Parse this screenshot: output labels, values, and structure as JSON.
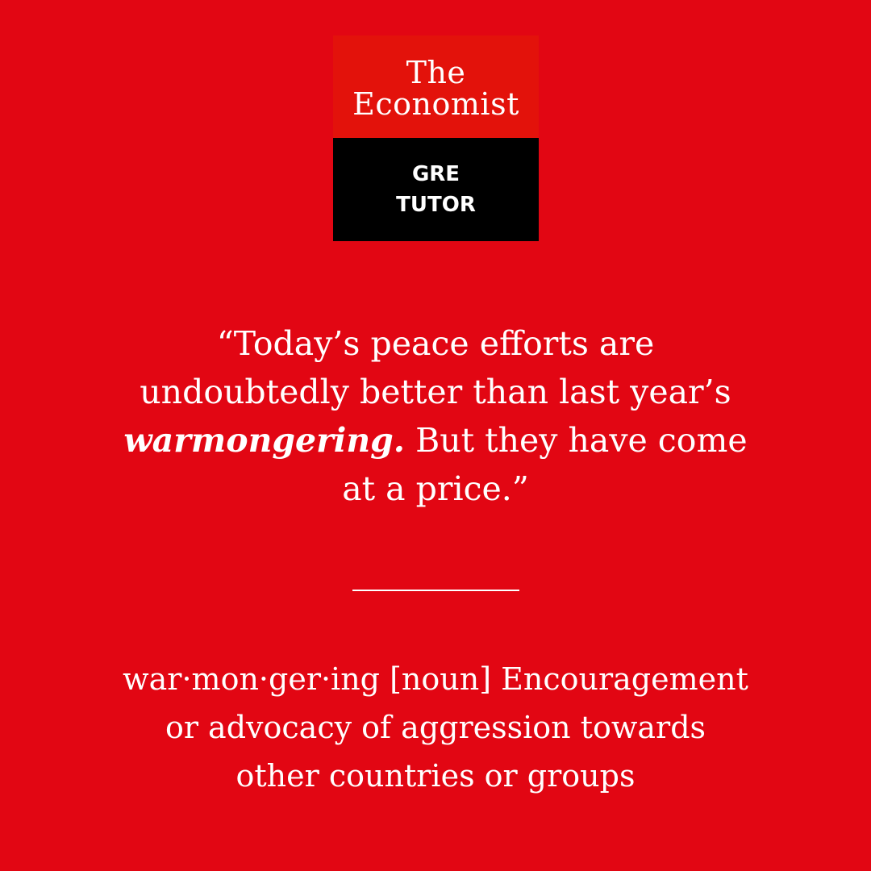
{
  "logo": {
    "brand_line1": "The",
    "brand_line2": "Economist",
    "product_line1": "GRE",
    "product_line2": "TUTOR"
  },
  "quote": {
    "line1": "“Today’s peace efforts are",
    "line2": "undoubtedly better than last year’s",
    "keyword": "warmongering.",
    "line3_rest": " But they have come",
    "line4": "at a price.”"
  },
  "definition": {
    "line1": "war·mon·ger·ing [noun] Encouragement",
    "line2": "or advocacy of aggression towards",
    "line3": "other countries or groups"
  },
  "colors": {
    "background": "#e20613",
    "logo_red": "#e3120b",
    "logo_black": "#000000",
    "text": "#ffffff"
  }
}
